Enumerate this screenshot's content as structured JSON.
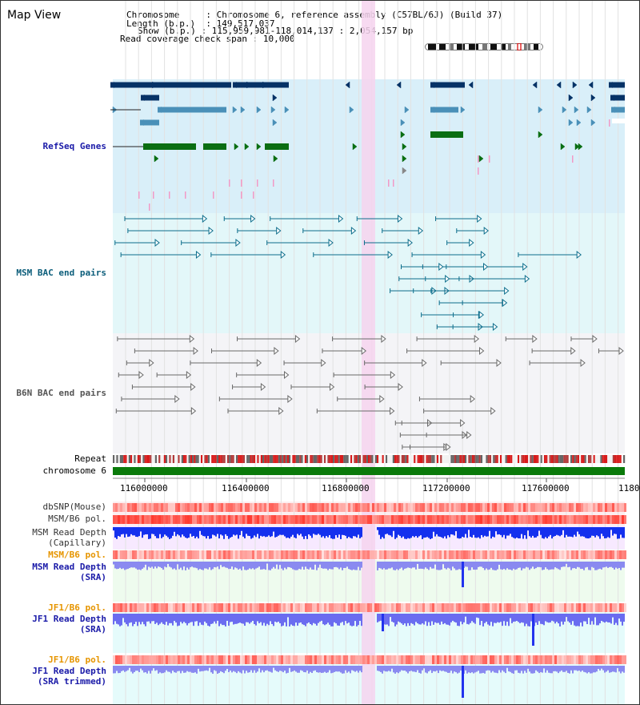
{
  "page": {
    "title": "Map View"
  },
  "info": {
    "chromosome_label": "Chromosome",
    "chromosome_value": "Chromosome 6, reference assembly (C57BL/6J) (Build 37)",
    "length_label": "Length (b.p.)",
    "length_value": "149,517,037",
    "show_label": "Show (b.p.)",
    "show_value": "115,959,981-118,014,137 : 2,054,157 bp",
    "coverage_label": "Read coverage check span",
    "coverage_value": "10,000"
  },
  "tracks": {
    "refseq": "RefSeq Genes",
    "msm_bac": "MSM BAC end pairs",
    "b6n_bac": "B6N BAC end pairs",
    "repeat": "Repeat",
    "chromosome": "chromosome 6",
    "dbsnp": "dbSNP(Mouse)",
    "msm_b6_pol_1": "MSM/B6 pol.",
    "msm_read_depth_cap_1": "MSM Read Depth",
    "msm_read_depth_cap_2": "(Capillary)",
    "msm_b6_pol_2": "MSM/B6 pol.",
    "msm_read_depth_sra_1": "MSM Read Depth",
    "msm_read_depth_sra_2": "(SRA)",
    "jf1_b6_pol_1": "JF1/B6 pol.",
    "jf1_read_depth_sra_1": "JF1 Read Depth",
    "jf1_read_depth_sra_2": "(SRA)",
    "jf1_b6_pol_2": "JF1/B6 pol.",
    "jf1_read_depth_trim_1": "JF1 Read Depth",
    "jf1_read_depth_trim_2": "(SRA trimmed)"
  },
  "ruler": {
    "ticks": [
      "116000000",
      "116400000",
      "116800000",
      "117200000",
      "117600000",
      "1180"
    ]
  },
  "colors": {
    "refseq_bg": "#d9eff9",
    "msm_bac_bg": "#e3f7f9",
    "b6n_bac_bg": "#f4f4f7",
    "highlight": "#f6d3ef",
    "gene_dark": "#063266",
    "gene_mid": "#4a90b8",
    "gene_green": "#0a6e12",
    "bac_teal": "#0d6e8c",
    "bac_gray": "#6a6a6a",
    "msm_label": "#0b5d7a",
    "refseq_label": "#1a1aa8",
    "orange_label": "#e69500",
    "blue_label": "#1a1aa8",
    "depth_blue": "#0c1ee8",
    "depth_light": "#7c7ff0"
  }
}
